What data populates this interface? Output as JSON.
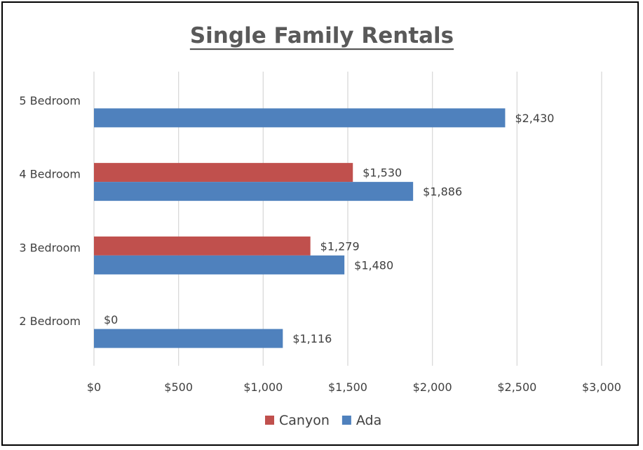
{
  "chart_data": {
    "type": "bar",
    "orientation": "horizontal",
    "title": "Single Family Rentals",
    "title_underlined": true,
    "categories": [
      "2 Bedroom",
      "3 Bedroom",
      "4 Bedroom",
      "5 Bedroom"
    ],
    "series": [
      {
        "name": "Canyon",
        "color": "#c0504d",
        "values": [
          0,
          1279,
          1530,
          null
        ],
        "labels": [
          "$0",
          "$1,279",
          "$1,530",
          null
        ]
      },
      {
        "name": "Ada",
        "color": "#4f81bd",
        "values": [
          1116,
          1480,
          1886,
          2430
        ],
        "labels": [
          "$1,116",
          "$1,480",
          "$1,886",
          "$2,430"
        ]
      }
    ],
    "xlim": [
      0,
      3000
    ],
    "x_ticks": [
      0,
      500,
      1000,
      1500,
      2000,
      2500,
      3000
    ],
    "x_tick_labels": [
      "$0",
      "$500",
      "$1,000",
      "$1,500",
      "$2,000",
      "$2,500",
      "$3,000"
    ],
    "xlabel": "",
    "ylabel": "",
    "grid": "vertical",
    "legend": {
      "position": "bottom",
      "entries": [
        "Canyon",
        "Ada"
      ]
    }
  }
}
